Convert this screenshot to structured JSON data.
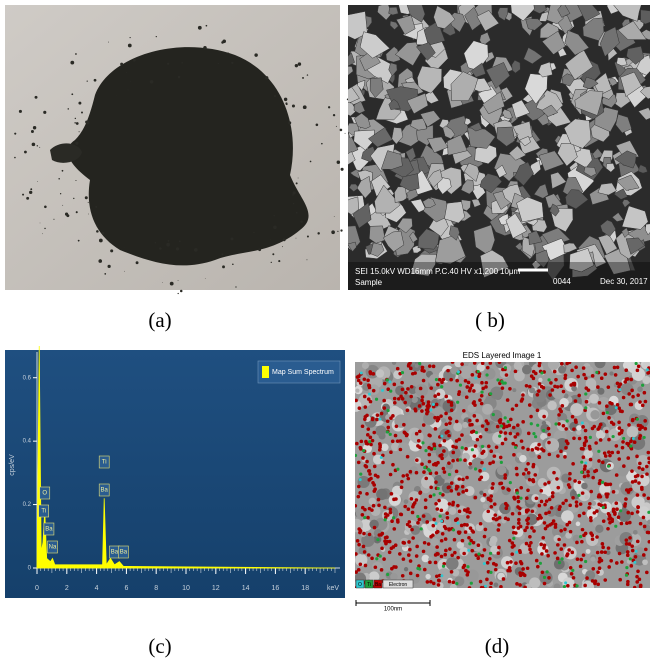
{
  "figure": {
    "captions": [
      "(a)",
      "( b)",
      "(c)",
      "(d)"
    ]
  },
  "sem_info": {
    "bar": "SEI 15.0kV WD16mm P.C.40  HV  x1,200",
    "scale": "10μm",
    "number": "0044",
    "date": "Dec 30, 2017",
    "sample": "Sample"
  },
  "eds_map": {
    "title": "EDS Layered Image 1",
    "legend": [
      "O",
      "Ti",
      "Ba",
      "Electron"
    ],
    "scale_bar": "100nm"
  },
  "chart_data": {
    "type": "area",
    "ylabel": "cps/eV",
    "xlabel": "keV",
    "x": [
      0,
      0.15,
      0.28,
      0.4,
      0.52,
      0.65,
      0.9,
      1.04,
      1.2,
      4.4,
      4.51,
      4.65,
      4.93,
      5.2,
      5.53,
      5.8,
      20
    ],
    "series": [
      {
        "name": "Map Sum Spectrum",
        "color": "#ffff00",
        "values": [
          0.01,
          0.7,
          0.05,
          0.08,
          0.18,
          0.03,
          0.02,
          0.03,
          0.01,
          0.01,
          0.22,
          0.01,
          0.03,
          0.01,
          0.02,
          0.005,
          0
        ]
      }
    ],
    "peak_labels": [
      {
        "label": "O",
        "x": 0.52
      },
      {
        "label": "Ti",
        "x": 0.45
      },
      {
        "label": "Ba",
        "x": 0.8
      },
      {
        "label": "Na",
        "x": 1.04
      },
      {
        "label": "Ti",
        "x": 4.51
      },
      {
        "label": "Ba",
        "x": 4.51
      },
      {
        "label": "Ba",
        "x": 5.2
      },
      {
        "label": "Ba",
        "x": 5.8
      }
    ],
    "xlim": [
      0,
      20
    ],
    "ylim": [
      0,
      0.7
    ],
    "xticks": [
      0,
      2,
      4,
      6,
      8,
      10,
      12,
      14,
      16,
      18
    ],
    "yticks": [
      0,
      0.2,
      0.4,
      0.6
    ]
  }
}
